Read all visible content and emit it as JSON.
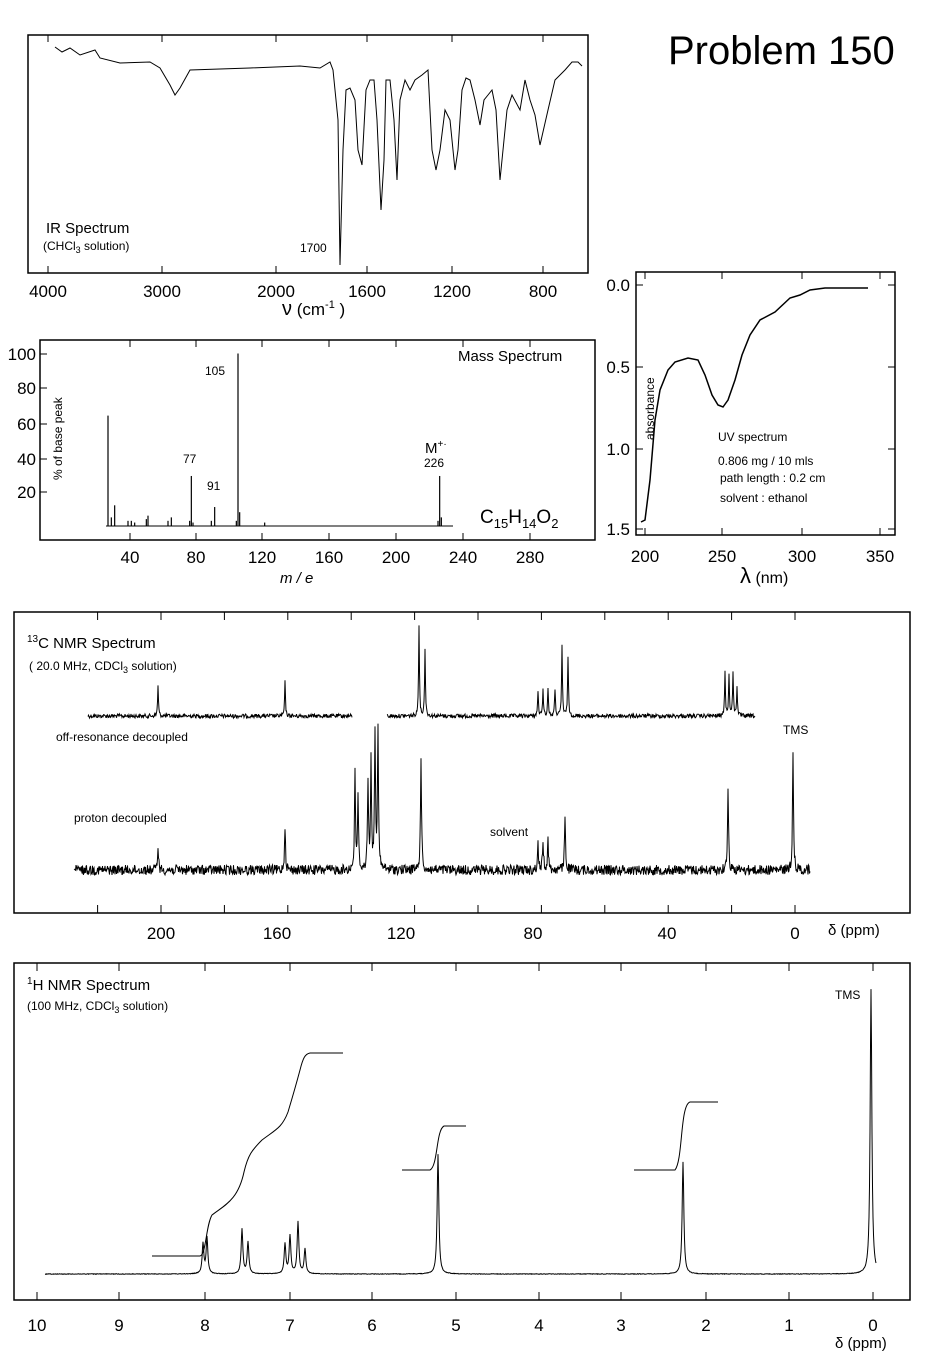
{
  "title": "Problem 150",
  "ir": {
    "label": "IR Spectrum",
    "solvent": [
      "(CHCl",
      "3",
      "  solution)"
    ],
    "peak_label": "1700",
    "xticks": [
      "4000",
      "3000",
      "2000",
      "1600",
      "1200",
      "800"
    ],
    "xlabel": [
      "ν",
      "  (cm",
      "-1",
      " )"
    ]
  },
  "uv": {
    "yticks": [
      "0.0",
      "0.5",
      "1.0",
      "1.5"
    ],
    "xticks": [
      "200",
      "250",
      "300",
      "350"
    ],
    "xlabel": [
      "λ",
      " (nm)"
    ],
    "ylabel": "absorbance",
    "notes": [
      "UV spectrum",
      "0.806 mg / 10 mls",
      "path length :  0.2  cm",
      "solvent : ethanol"
    ]
  },
  "mass": {
    "title": "Mass Spectrum",
    "ylabel": "% of base peak",
    "xlabel": "m / e",
    "yticks": [
      "100",
      "80",
      "60",
      "40",
      "20"
    ],
    "xticks": [
      "40",
      "80",
      "120",
      "160",
      "200",
      "240",
      "280"
    ],
    "peak_labels": [
      "105",
      "77",
      "91"
    ],
    "molecular_ion": [
      "M",
      "+·"
    ],
    "molecular_ion_mz": "226",
    "formula": [
      "C",
      "15",
      "H",
      "14",
      "O",
      "2"
    ],
    "peaks": [
      {
        "mz": 27,
        "intensity": 64
      },
      {
        "mz": 29,
        "intensity": 5
      },
      {
        "mz": 31,
        "intensity": 12
      },
      {
        "mz": 39,
        "intensity": 3
      },
      {
        "mz": 41,
        "intensity": 3
      },
      {
        "mz": 43,
        "intensity": 2
      },
      {
        "mz": 50,
        "intensity": 4
      },
      {
        "mz": 51,
        "intensity": 6
      },
      {
        "mz": 63,
        "intensity": 3
      },
      {
        "mz": 65,
        "intensity": 5
      },
      {
        "mz": 76,
        "intensity": 3
      },
      {
        "mz": 77,
        "intensity": 29
      },
      {
        "mz": 78,
        "intensity": 2
      },
      {
        "mz": 89,
        "intensity": 3
      },
      {
        "mz": 91,
        "intensity": 11
      },
      {
        "mz": 104,
        "intensity": 3
      },
      {
        "mz": 105,
        "intensity": 100
      },
      {
        "mz": 106,
        "intensity": 8
      },
      {
        "mz": 121,
        "intensity": 2
      },
      {
        "mz": 225,
        "intensity": 3
      },
      {
        "mz": 226,
        "intensity": 29
      },
      {
        "mz": 227,
        "intensity": 5
      }
    ]
  },
  "c13": {
    "title": [
      "13",
      "C  NMR Spectrum"
    ],
    "subtitle": [
      "( 20.0 MHz,  CDCl",
      "3",
      " solution)"
    ],
    "off_resonance": "off-resonance decoupled",
    "proton_decoupled": "proton decoupled",
    "tms": "TMS",
    "solvent": "solvent",
    "xticks": [
      "200",
      "160",
      "120",
      "80",
      "40",
      "0"
    ],
    "xlabel": "δ (ppm)"
  },
  "h1": {
    "title": [
      "1",
      "H  NMR Spectrum"
    ],
    "subtitle": [
      "(100 MHz,  CDCl",
      "3",
      " solution)"
    ],
    "tms": "TMS",
    "xticks": [
      "10",
      "9",
      "8",
      "7",
      "6",
      "5",
      "4",
      "3",
      "2",
      "1",
      "0"
    ],
    "xlabel": "δ (ppm)"
  }
}
